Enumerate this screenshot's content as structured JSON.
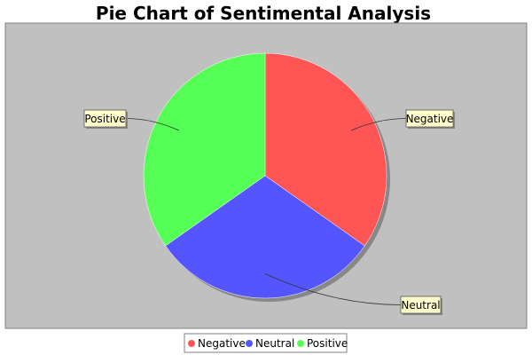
{
  "chart_data": {
    "type": "pie",
    "title": "Pie Chart of Sentimental Analysis",
    "categories": [
      "Negative",
      "Neutral",
      "Positive"
    ],
    "values": [
      34.7,
      30.6,
      34.7
    ],
    "colors": [
      "#ff5555",
      "#5555ff",
      "#55ff55"
    ],
    "legend_position": "bottom",
    "plot_background": "#c0c0c0",
    "label_background": "#ffffcc"
  }
}
